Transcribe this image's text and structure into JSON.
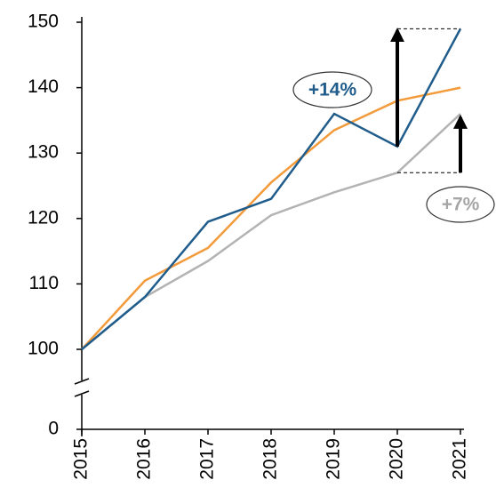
{
  "chart_data": {
    "type": "line",
    "x": [
      2015,
      2016,
      2017,
      2018,
      2019,
      2020,
      2021
    ],
    "xlim": [
      2015,
      2021
    ],
    "xticks": [
      2015,
      2016,
      2017,
      2018,
      2019,
      2020,
      2021
    ],
    "ylim": [
      0,
      150
    ],
    "yticks": [
      0,
      100,
      110,
      120,
      130,
      140,
      150
    ],
    "axis_break": [
      0,
      100
    ],
    "grid": false,
    "series": [
      {
        "color": "#f39a3b",
        "values": [
          100,
          110.5,
          115.5,
          125.5,
          133.5,
          138,
          140
        ]
      },
      {
        "color": "#b3b3b3",
        "values": [
          100,
          108,
          113.5,
          120.5,
          124,
          127,
          136
        ]
      },
      {
        "color": "#1f5c8b",
        "values": [
          100,
          108,
          119.5,
          123,
          136,
          131,
          149
        ]
      }
    ],
    "annotations": [
      {
        "text": "+14%",
        "color": "#1f5c8b"
      },
      {
        "text": "+7%",
        "color": "#a6a6a6"
      }
    ]
  }
}
